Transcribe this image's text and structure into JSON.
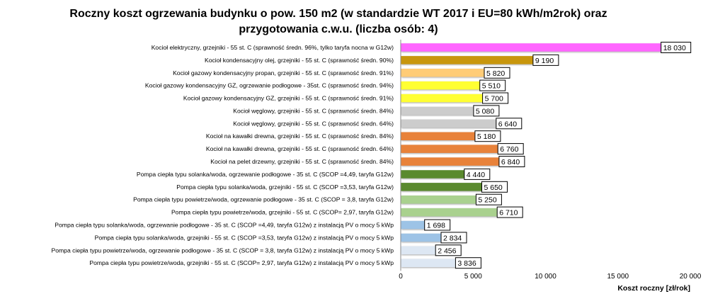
{
  "chart_data": {
    "type": "bar",
    "orientation": "horizontal",
    "title_lines": [
      "Roczny koszt ogrzewania budynku  o pow. 150 m2 (w standardzie WT 2017 i EU=80 kWh/m2rok) oraz",
      "przygotowania c.w.u. (liczba osób: 4)"
    ],
    "xlabel": "Koszt roczny [zł/rok]",
    "xlim": [
      0,
      20000
    ],
    "xticks": [
      0,
      5000,
      10000,
      15000,
      20000
    ],
    "xtick_labels": [
      "0",
      "5 000",
      "10 000",
      "15 000",
      "20 000"
    ],
    "grid": false,
    "categories": [
      "Kocioł elektryczny,  grzejniki - 55 st. C  (sprawność średn. 96%, tylko taryfa nocna w G12w)",
      "Kocioł kondensacyjny olej,  grzejniki - 55 st. C  (sprawność średn. 90%)",
      "Kocioł gazowy kondensacyjny propan, grzejniki - 55 st. C  (sprawność średn. 91%)",
      "Kocioł gazowy kondensacyjny GZ, ogrzewanie podłogowe - 35st. C  (sprawność średn. 94%)",
      "Kocioł gazowy kondensacyjny GZ, grzejniki - 55 st. C  (sprawność średn. 91%)",
      "Kocioł węglowy,  grzejniki - 55 st. C  (sprawność średn. 84%)",
      "Kocioł węglowy,  grzejniki - 55 st. C  (sprawność średn. 64%)",
      "Kocioł na kawałki drewna, grzejniki - 55 st. C  (sprawność średn. 84%)",
      "Kocioł na kawałki drewna, grzejniki - 55 st. C  (sprawność średn. 64%)",
      "Kocioł na pelet drzewny, grzejniki - 55 st. C  (sprawność średn. 84%)",
      "Pompa ciepła typu solanka/woda, ogrzewanie podłogowe - 35 st. C  (SCOP =4,49, taryfa G12w)",
      "Pompa ciepła typu solanka/woda,  grzejniki - 55 st. C  (SCOP =3,53, taryfa G12w)",
      "Pompa ciepła typu powietrze/woda, ogrzewanie podłogowe - 35 st. C  (SCOP = 3,8, taryfa G12w)",
      "Pompa ciepła typu powietrze/woda, grzejniki - 55 st. C  (SCOP= 2,97, taryfa G12w)",
      "Pompa ciepła typu solanka/woda, ogrzewanie podłogowe - 35 st. C  (SCOP =4,49, taryfa G12w) z instalacją PV o mocy 5 kWp",
      "Pompa ciepła typu solanka/woda, grzejniki - 55 st. C  (SCOP =3,53, taryfa G12w) z instalacją PV o mocy 5 kWp",
      "Pompa ciepła typu powietrze/woda, ogrzewanie podłogowe - 35 st. C  (SCOP = 3,8, taryfa G12w) z instalacją PV o mocy 5 kWp",
      "Pompa ciepła typu powietrze/woda, grzejniki - 55 st. C  (SCOP= 2,97, taryfa G12w) z instalacją PV o mocy 5 kWp"
    ],
    "values": [
      18030,
      9190,
      5820,
      5510,
      5700,
      5080,
      6640,
      5180,
      6760,
      6840,
      4440,
      5650,
      5250,
      6710,
      1698,
      2834,
      2456,
      3836
    ],
    "value_labels": [
      "18 030",
      "9 190",
      "5 820",
      "5 510",
      "5 700",
      "5 080",
      "6 640",
      "5 180",
      "6 760",
      "6 840",
      "4 440",
      "5 650",
      "5 250",
      "6 710",
      "1 698",
      "2 834",
      "2 456",
      "3 836"
    ],
    "bar_colors": [
      "#ff66ff",
      "#c8960c",
      "#ffcc77",
      "#ffff33",
      "#ffff33",
      "#cccccc",
      "#cccccc",
      "#e8823a",
      "#e8823a",
      "#e8823a",
      "#5a8a2e",
      "#5a8a2e",
      "#a9d18e",
      "#a9d18e",
      "#9dc3e6",
      "#9dc3e6",
      "#dde7f3",
      "#dde7f3"
    ]
  }
}
